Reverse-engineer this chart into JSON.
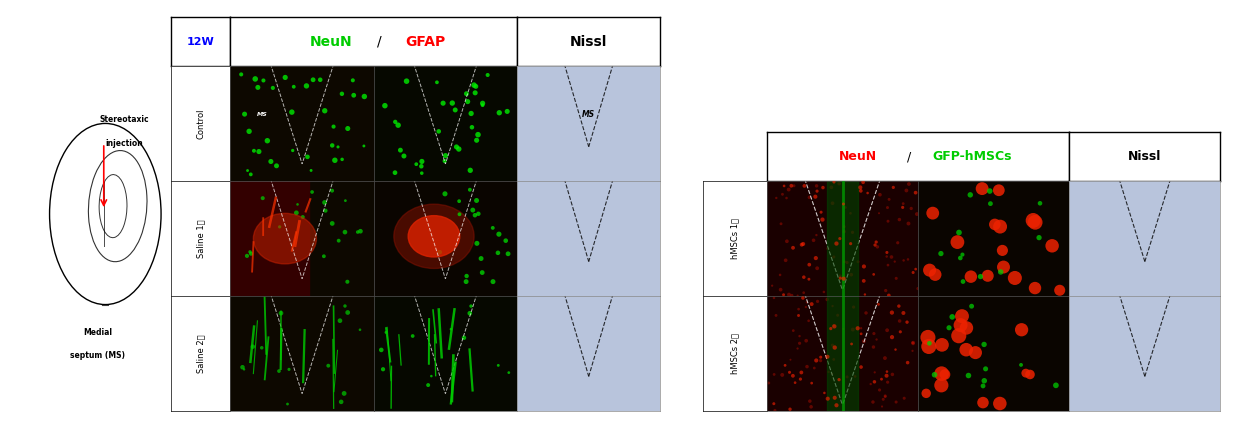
{
  "fig_width": 12.39,
  "fig_height": 4.28,
  "bg_color": "#ffffff",
  "label_12W": "12W",
  "label_12W_color": "#0000ff",
  "left_col_headers": [
    "NeuN",
    " / ",
    "GFAP",
    "Nissl"
  ],
  "left_col_header_colors": [
    "#00cc00",
    "#000000",
    "#ff0000",
    "#000000"
  ],
  "right_col_headers": [
    "NeuN",
    " / ",
    "GFP-hMSCs",
    "Nissl"
  ],
  "right_col_header_colors": [
    "#ff0000",
    "#000000",
    "#00cc00",
    "#000000"
  ],
  "left_rows": [
    "Control",
    "Saline 1주",
    "Saline 2주"
  ],
  "right_rows": [
    "hMSCs 1주",
    "hMSCs 2주"
  ],
  "diagram_labels": [
    "Stereotaxic",
    "injection",
    "Medial",
    "septum (MS)"
  ]
}
